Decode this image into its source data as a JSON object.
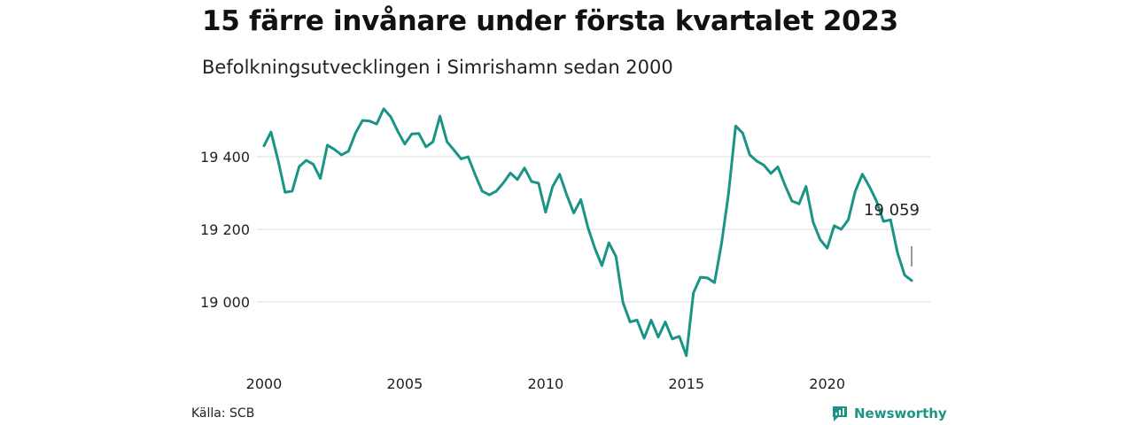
{
  "title": "15 färre invånare under första kvartalet 2023",
  "subtitle": "Befolkningsutvecklingen i Simrishamn sedan 2000",
  "source": "Källa: SCB",
  "brand": {
    "name": "Newsworthy",
    "icon": "newsworthy-logo-icon",
    "color": "#1a9485"
  },
  "chart_data": {
    "type": "line",
    "title": "15 färre invånare under första kvartalet 2023",
    "subtitle": "Befolkningsutvecklingen i Simrishamn sedan 2000",
    "xlabel": "",
    "ylabel": "",
    "x_ticks": [
      2000,
      2005,
      2010,
      2015,
      2020
    ],
    "y_ticks": [
      {
        "value": 19000,
        "label": "19 000"
      },
      {
        "value": 19200,
        "label": "19 200"
      },
      {
        "value": 19400,
        "label": "19 400"
      }
    ],
    "ylim": [
      18840,
      19560
    ],
    "xlim": [
      2000,
      2024
    ],
    "grid": "horizontal",
    "line_color": "#1a9485",
    "annotation": {
      "label": "19 059",
      "x": 2023.0,
      "y": 19059
    },
    "series": [
      {
        "values": [
          [
            2000.0,
            19430
          ],
          [
            2000.25,
            19468
          ],
          [
            2000.5,
            19390
          ],
          [
            2000.75,
            19302
          ],
          [
            2001.0,
            19305
          ],
          [
            2001.25,
            19373
          ],
          [
            2001.5,
            19390
          ],
          [
            2001.75,
            19379
          ],
          [
            2002.0,
            19340
          ],
          [
            2002.25,
            19432
          ],
          [
            2002.5,
            19420
          ],
          [
            2002.75,
            19405
          ],
          [
            2003.0,
            19415
          ],
          [
            2003.25,
            19465
          ],
          [
            2003.5,
            19500
          ],
          [
            2003.75,
            19498
          ],
          [
            2004.0,
            19490
          ],
          [
            2004.25,
            19532
          ],
          [
            2004.5,
            19510
          ],
          [
            2004.75,
            19470
          ],
          [
            2005.0,
            19435
          ],
          [
            2005.25,
            19463
          ],
          [
            2005.5,
            19464
          ],
          [
            2005.75,
            19427
          ],
          [
            2006.0,
            19441
          ],
          [
            2006.25,
            19512
          ],
          [
            2006.5,
            19441
          ],
          [
            2006.75,
            19418
          ],
          [
            2007.0,
            19394
          ],
          [
            2007.25,
            19400
          ],
          [
            2007.5,
            19350
          ],
          [
            2007.75,
            19305
          ],
          [
            2008.0,
            19295
          ],
          [
            2008.25,
            19305
          ],
          [
            2008.5,
            19328
          ],
          [
            2008.75,
            19355
          ],
          [
            2009.0,
            19337
          ],
          [
            2009.25,
            19369
          ],
          [
            2009.5,
            19332
          ],
          [
            2009.75,
            19327
          ],
          [
            2010.0,
            19247
          ],
          [
            2010.25,
            19318
          ],
          [
            2010.5,
            19352
          ],
          [
            2010.75,
            19295
          ],
          [
            2011.0,
            19245
          ],
          [
            2011.25,
            19282
          ],
          [
            2011.5,
            19206
          ],
          [
            2011.75,
            19148
          ],
          [
            2012.0,
            19100
          ],
          [
            2012.25,
            19163
          ],
          [
            2012.5,
            19125
          ],
          [
            2012.75,
            18998
          ],
          [
            2013.0,
            18945
          ],
          [
            2013.25,
            18950
          ],
          [
            2013.5,
            18900
          ],
          [
            2013.75,
            18950
          ],
          [
            2014.0,
            18903
          ],
          [
            2014.25,
            18945
          ],
          [
            2014.5,
            18898
          ],
          [
            2014.75,
            18905
          ],
          [
            2015.0,
            18852
          ],
          [
            2015.25,
            19025
          ],
          [
            2015.5,
            19068
          ],
          [
            2015.75,
            19066
          ],
          [
            2016.0,
            19053
          ],
          [
            2016.25,
            19162
          ],
          [
            2016.5,
            19300
          ],
          [
            2016.75,
            19485
          ],
          [
            2017.0,
            19465
          ],
          [
            2017.25,
            19405
          ],
          [
            2017.5,
            19388
          ],
          [
            2017.75,
            19377
          ],
          [
            2018.0,
            19354
          ],
          [
            2018.25,
            19372
          ],
          [
            2018.5,
            19322
          ],
          [
            2018.75,
            19278
          ],
          [
            2019.0,
            19270
          ],
          [
            2019.25,
            19318
          ],
          [
            2019.5,
            19220
          ],
          [
            2019.75,
            19172
          ],
          [
            2020.0,
            19148
          ],
          [
            2020.25,
            19210
          ],
          [
            2020.5,
            19200
          ],
          [
            2020.75,
            19226
          ],
          [
            2021.0,
            19305
          ],
          [
            2021.25,
            19352
          ],
          [
            2021.5,
            19318
          ],
          [
            2021.75,
            19278
          ],
          [
            2022.0,
            19222
          ],
          [
            2022.25,
            19226
          ],
          [
            2022.5,
            19135
          ],
          [
            2022.75,
            19074
          ],
          [
            2023.0,
            19059
          ]
        ]
      }
    ]
  }
}
